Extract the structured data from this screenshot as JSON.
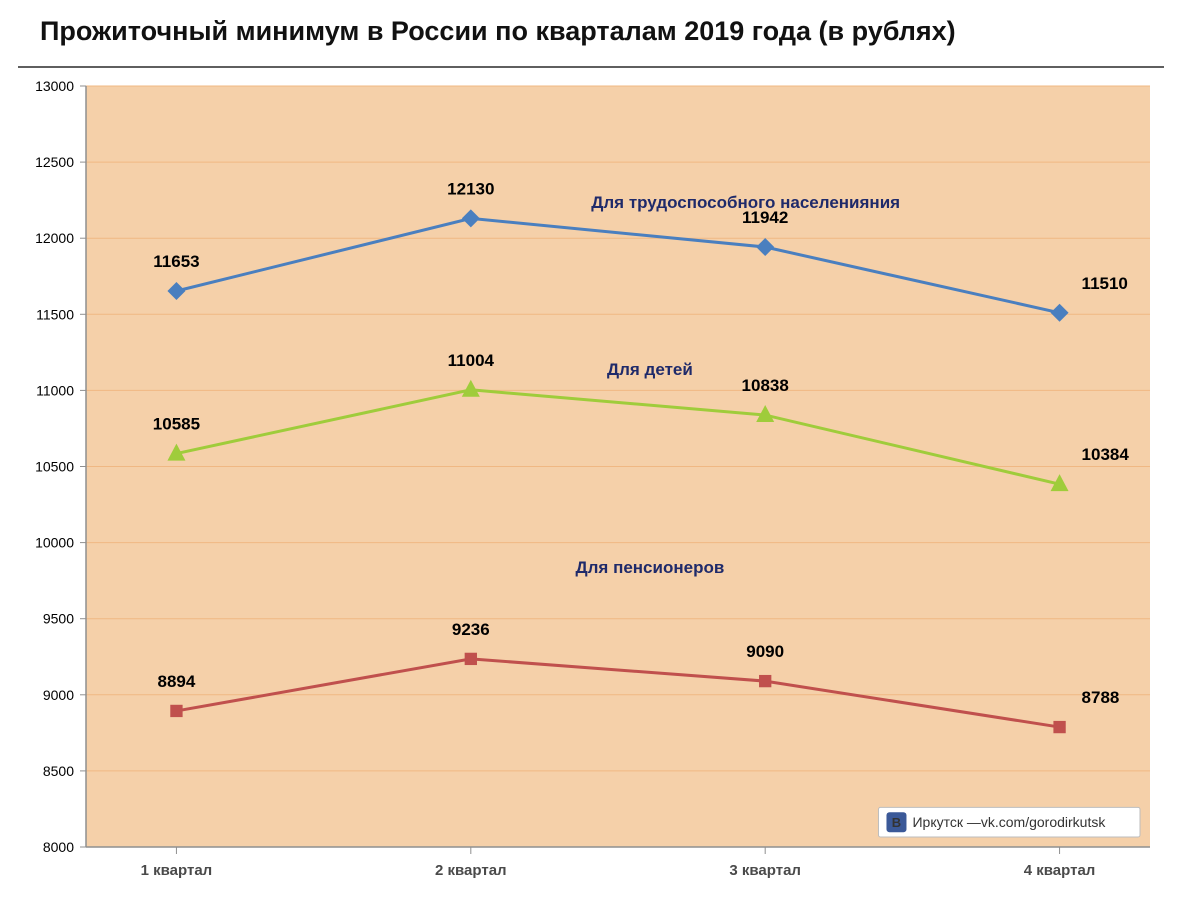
{
  "title": "Прожиточный минимум в России по кварталам 2019 года (в рублях)",
  "title_fontsize": 27,
  "title_color": "#111111",
  "chart": {
    "type": "line",
    "background_color": "#ffffff",
    "plot_background_color": "#f5d0a9",
    "grid_color": "#f0b883",
    "grid_width": 1,
    "axis_line_color": "#8f8f8f",
    "categories": [
      "1 квартал",
      "2 квартал",
      "3 квартал",
      "4 квартал"
    ],
    "xtick_fontsize": 15,
    "xtick_fontweight": "bold",
    "ylim": [
      8000,
      13000
    ],
    "ytick_step": 500,
    "ytick_fontsize": 14,
    "series": [
      {
        "id": "able",
        "label": "Для трудоспособного населенияния",
        "color": "#4a7fbf",
        "line_width": 3,
        "marker": "diamond",
        "marker_size": 9,
        "values": [
          11653,
          12130,
          11942,
          11510
        ],
        "label_pos": {
          "x_frac": 0.62,
          "y_value": 12200
        }
      },
      {
        "id": "children",
        "label": "Для детей",
        "color": "#9fcc3b",
        "line_width": 3,
        "marker": "triangle",
        "marker_size": 10,
        "values": [
          10585,
          11004,
          10838,
          10384
        ],
        "label_pos": {
          "x_frac": 0.53,
          "y_value": 11100
        }
      },
      {
        "id": "pensioners",
        "label": "Для пенсионеров",
        "color": "#c0504d",
        "line_width": 3,
        "marker": "square",
        "marker_size": 8,
        "values": [
          8894,
          9236,
          9090,
          8788
        ],
        "label_pos": {
          "x_frac": 0.53,
          "y_value": 9800
        }
      }
    ],
    "point_label_fontsize": 17,
    "series_label_fontsize": 17,
    "series_label_color": "#1f2a6a"
  },
  "badge": {
    "text": "Иркутск —vk.com/gorodirkutsk",
    "icon_bg": "#3b5998",
    "icon_fg": "#ffffff",
    "fontsize": 14
  }
}
